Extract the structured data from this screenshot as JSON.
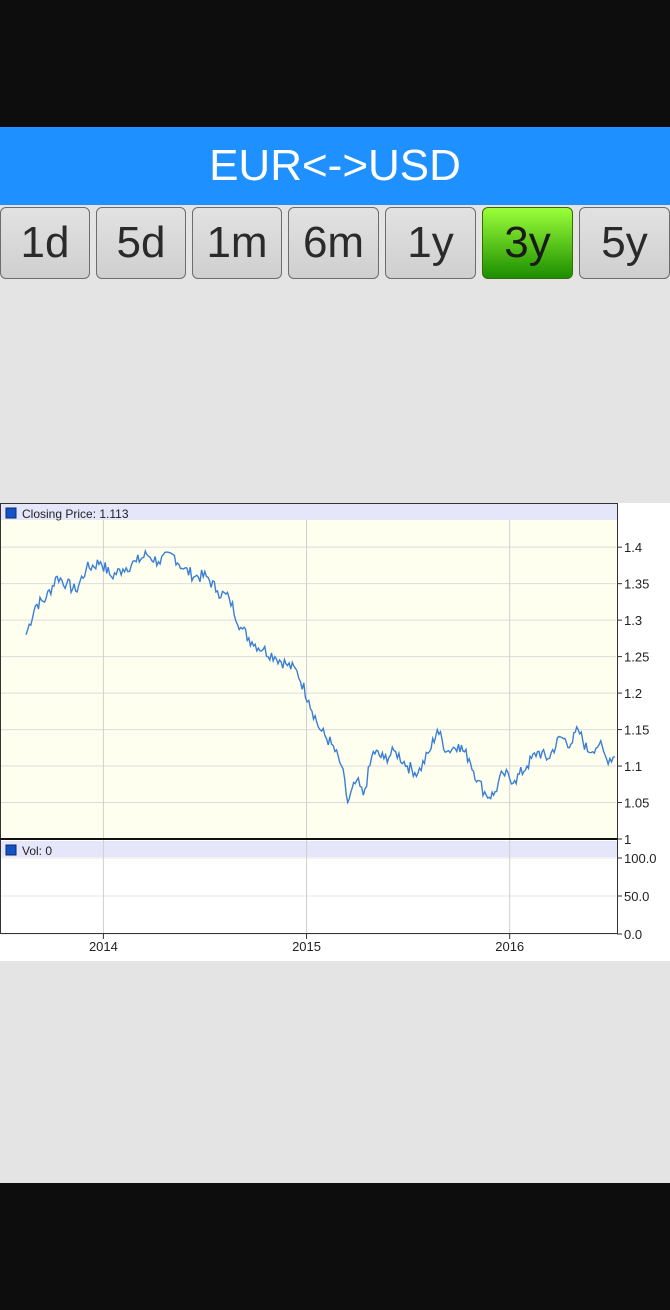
{
  "header": {
    "title": "EUR<->USD"
  },
  "tabs": [
    {
      "label": "1d",
      "active": false
    },
    {
      "label": "5d",
      "active": false
    },
    {
      "label": "1m",
      "active": false
    },
    {
      "label": "6m",
      "active": false
    },
    {
      "label": "1y",
      "active": false
    },
    {
      "label": "3y",
      "active": true
    },
    {
      "label": "5y",
      "active": false
    }
  ],
  "colors": {
    "accent": "#1e90ff",
    "active_tab": "#4caf1a",
    "price_line": "#3a7fd5",
    "plot_bg": "#fffff0",
    "legend_bg": "#e6e6fa"
  },
  "chart_data": {
    "type": "line",
    "price_panel": {
      "legend": "Closing Price: 1.113",
      "ylim": [
        1.0,
        1.44
      ],
      "yticks": [
        "1.4",
        "1.35",
        "1.3",
        "1.25",
        "1.2",
        "1.15",
        "1.1",
        "1.05",
        "1"
      ],
      "series": [
        {
          "x": [
            "2013-08-15",
            "2013-09-01",
            "2013-09-20",
            "2013-10-10",
            "2013-10-27",
            "2013-11-12",
            "2013-12-01",
            "2013-12-27",
            "2014-01-15",
            "2014-02-05",
            "2014-03-01",
            "2014-03-20",
            "2014-04-10",
            "2014-05-06",
            "2014-05-25",
            "2014-06-15",
            "2014-07-05",
            "2014-07-25",
            "2014-08-15",
            "2014-09-05",
            "2014-09-25",
            "2014-10-15",
            "2014-11-05",
            "2014-11-25",
            "2014-12-15",
            "2015-01-05",
            "2015-01-25",
            "2015-02-15",
            "2015-03-05",
            "2015-03-16",
            "2015-04-01",
            "2015-04-13",
            "2015-05-01",
            "2015-05-20",
            "2015-06-10",
            "2015-07-01",
            "2015-07-20",
            "2015-08-10",
            "2015-08-24",
            "2015-09-10",
            "2015-10-01",
            "2015-10-20",
            "2015-11-05",
            "2015-11-20",
            "2015-12-03",
            "2015-12-20",
            "2016-01-10",
            "2016-02-01",
            "2016-02-20",
            "2016-03-10",
            "2016-04-01",
            "2016-04-20",
            "2016-05-03",
            "2016-05-20",
            "2016-06-10",
            "2016-06-23",
            "2016-07-08"
          ],
          "y": [
            1.28,
            1.32,
            1.33,
            1.36,
            1.35,
            1.34,
            1.37,
            1.38,
            1.36,
            1.37,
            1.38,
            1.39,
            1.38,
            1.39,
            1.37,
            1.36,
            1.36,
            1.34,
            1.33,
            1.29,
            1.27,
            1.26,
            1.25,
            1.24,
            1.23,
            1.19,
            1.15,
            1.13,
            1.1,
            1.05,
            1.08,
            1.06,
            1.12,
            1.11,
            1.12,
            1.1,
            1.09,
            1.12,
            1.15,
            1.12,
            1.13,
            1.11,
            1.08,
            1.06,
            1.06,
            1.09,
            1.08,
            1.1,
            1.12,
            1.11,
            1.14,
            1.13,
            1.15,
            1.12,
            1.13,
            1.11,
            1.113
          ]
        }
      ]
    },
    "volume_panel": {
      "legend": "Vol: 0",
      "ylim": [
        0,
        100
      ],
      "yticks": [
        "100.0",
        "50.0",
        "0.0"
      ],
      "series": [
        {
          "x": [],
          "y": []
        }
      ]
    },
    "x_axis": {
      "ticks": [
        "2014",
        "2015",
        "2016"
      ]
    }
  }
}
